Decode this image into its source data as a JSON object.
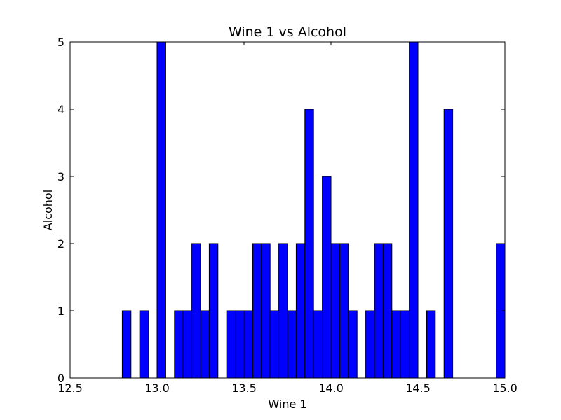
{
  "chart_data": {
    "type": "bar",
    "title": "Wine 1 vs Alcohol",
    "xlabel": "Wine 1",
    "ylabel": "Alcohol",
    "xlim": [
      12.5,
      15.0
    ],
    "ylim": [
      0,
      5
    ],
    "bar_width": 0.05,
    "xticks": [
      "12.5",
      "13.0",
      "13.5",
      "14.0",
      "14.5",
      "15.0"
    ],
    "yticks": [
      "0",
      "1",
      "2",
      "3",
      "4",
      "5"
    ],
    "grid": false,
    "colors": {
      "bar_fill": "#0000ff",
      "bar_edge": "#000000",
      "axis": "#000000"
    },
    "bars": [
      {
        "x": 12.85,
        "y": 1
      },
      {
        "x": 12.95,
        "y": 1
      },
      {
        "x": 13.05,
        "y": 5
      },
      {
        "x": 13.15,
        "y": 1
      },
      {
        "x": 13.2,
        "y": 1
      },
      {
        "x": 13.25,
        "y": 2
      },
      {
        "x": 13.3,
        "y": 1
      },
      {
        "x": 13.35,
        "y": 2
      },
      {
        "x": 13.45,
        "y": 1
      },
      {
        "x": 13.5,
        "y": 1
      },
      {
        "x": 13.55,
        "y": 1
      },
      {
        "x": 13.6,
        "y": 2
      },
      {
        "x": 13.65,
        "y": 2
      },
      {
        "x": 13.7,
        "y": 1
      },
      {
        "x": 13.75,
        "y": 2
      },
      {
        "x": 13.8,
        "y": 1
      },
      {
        "x": 13.85,
        "y": 2
      },
      {
        "x": 13.9,
        "y": 4
      },
      {
        "x": 13.95,
        "y": 1
      },
      {
        "x": 14.0,
        "y": 3
      },
      {
        "x": 14.05,
        "y": 2
      },
      {
        "x": 14.1,
        "y": 2
      },
      {
        "x": 14.15,
        "y": 1
      },
      {
        "x": 14.25,
        "y": 1
      },
      {
        "x": 14.3,
        "y": 2
      },
      {
        "x": 14.35,
        "y": 2
      },
      {
        "x": 14.4,
        "y": 1
      },
      {
        "x": 14.45,
        "y": 1
      },
      {
        "x": 14.5,
        "y": 5
      },
      {
        "x": 14.6,
        "y": 1
      },
      {
        "x": 14.7,
        "y": 4
      },
      {
        "x": 15.0,
        "y": 2
      }
    ]
  }
}
